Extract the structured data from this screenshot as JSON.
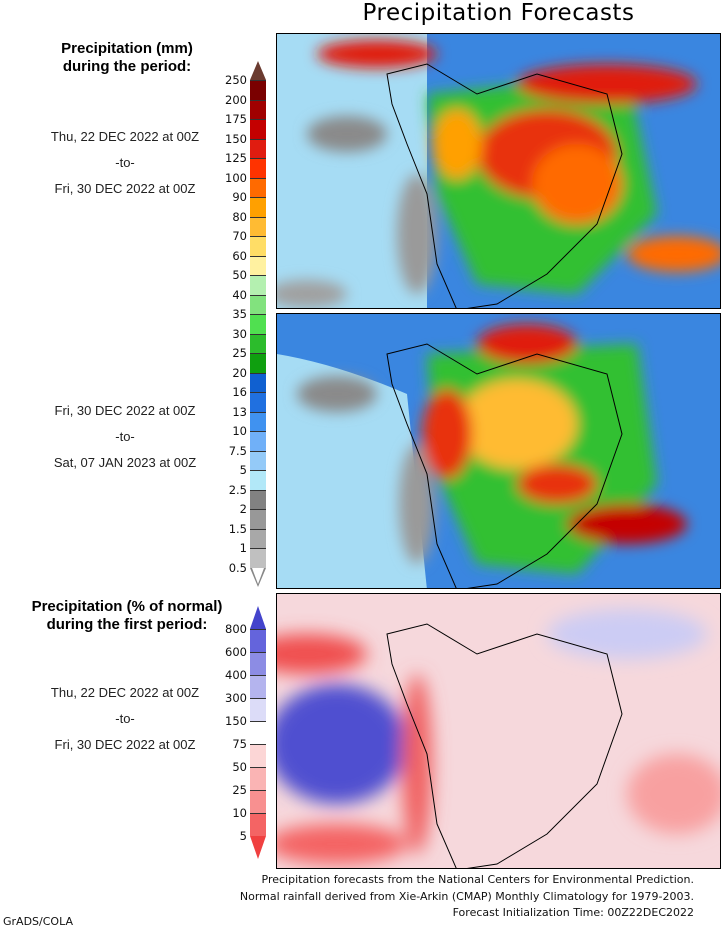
{
  "title": "Precipitation Forecasts",
  "precip_header": [
    "Precipitation (mm)",
    "during the period:"
  ],
  "period1": {
    "from": "Thu, 22 DEC 2022 at 00Z",
    "sep": "-to-",
    "to": "Fri, 30 DEC 2022 at 00Z"
  },
  "period2": {
    "from": "Fri, 30 DEC 2022 at 00Z",
    "sep": "-to-",
    "to": "Sat, 07 JAN 2023 at 00Z"
  },
  "anom_header": [
    "Precipitation (% of normal)",
    "during the first period:"
  ],
  "period3": {
    "from": "Thu, 22 DEC 2022 at 00Z",
    "sep": "-to-",
    "to": "Fri, 30 DEC 2022 at 00Z"
  },
  "precip_scale": {
    "labels": [
      "250",
      "200",
      "175",
      "150",
      "125",
      "100",
      "90",
      "80",
      "70",
      "60",
      "50",
      "40",
      "35",
      "30",
      "25",
      "20",
      "16",
      "13",
      "10",
      "7.5",
      "5",
      "2.5",
      "2",
      "1.5",
      "1",
      "0.5"
    ],
    "colors": [
      "#6b3b30",
      "#7a0000",
      "#a00000",
      "#c40000",
      "#e01c10",
      "#ff3300",
      "#ff6a00",
      "#ffa000",
      "#ffbb33",
      "#ffdd66",
      "#fff1a0",
      "#b4f0b0",
      "#82e27e",
      "#50e050",
      "#2cbc2c",
      "#0f9f0f",
      "#1060d0",
      "#2070e0",
      "#4092f0",
      "#70b0f8",
      "#94caf8",
      "#b2e8f8",
      "#828282",
      "#989898",
      "#a8a8a8",
      "#c0c0c0",
      "#ffffff"
    ]
  },
  "anom_scale": {
    "labels": [
      "800",
      "600",
      "400",
      "300",
      "150",
      "75",
      "50",
      "25",
      "10",
      "5"
    ],
    "colors": [
      "#4444cc",
      "#6464dc",
      "#8c8ce4",
      "#b4b4ee",
      "#dcdcf8",
      "#ffffff",
      "#fcd6d6",
      "#fab4b4",
      "#f89090",
      "#f46464",
      "#f04040"
    ]
  },
  "footer": [
    "Precipitation forecasts from the National Centers for Environmental Prediction.",
    "Normal rainfall derived from Xie-Arkin (CMAP) Monthly Climatology for 1979-2003.",
    "Forecast Initialization Time: 00Z22DEC2022"
  ],
  "credit": "GrADS/COLA"
}
